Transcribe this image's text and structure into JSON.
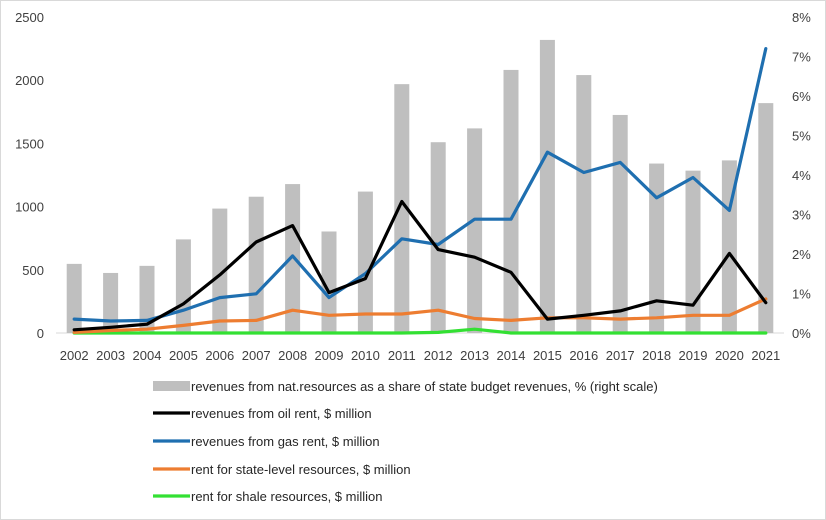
{
  "chart_data": {
    "type": "bar+line",
    "title": "",
    "categories": [
      "2002",
      "2003",
      "2004",
      "2005",
      "2006",
      "2007",
      "2008",
      "2009",
      "2010",
      "2011",
      "2012",
      "2013",
      "2014",
      "2015",
      "2016",
      "2017",
      "2018",
      "2019",
      "2020",
      "2021"
    ],
    "left_axis": {
      "ylim": [
        0,
        2500
      ],
      "ticks": [
        "0",
        "500",
        "1000",
        "1500",
        "2000",
        "2500"
      ]
    },
    "right_axis": {
      "ylim": [
        0,
        8
      ],
      "ticks": [
        "0%",
        "1%",
        "2%",
        "3%",
        "4%",
        "5%",
        "6%",
        "7%",
        "8%"
      ]
    },
    "bar_series": {
      "name": "revenues from nat.resources as a share of state budget revenues, % (right scale)",
      "axis": "right",
      "color": "#bfbfbf",
      "values": [
        1.75,
        1.52,
        1.7,
        2.37,
        3.15,
        3.45,
        3.77,
        2.57,
        3.58,
        6.3,
        4.83,
        5.18,
        6.66,
        7.42,
        6.53,
        5.52,
        4.29,
        4.11,
        4.37,
        5.82
      ]
    },
    "line_series": [
      {
        "name": "revenues from oil rent, $ million",
        "axis": "left",
        "color": "#000000",
        "values": [
          25,
          45,
          70,
          230,
          460,
          720,
          850,
          320,
          430,
          1040,
          660,
          600,
          480,
          110,
          140,
          175,
          255,
          220,
          630,
          240
        ]
      },
      {
        "name": "revenues from gas rent, $ million",
        "axis": "left",
        "color": "#1f6fb0",
        "values": [
          110,
          95,
          100,
          180,
          280,
          310,
          610,
          280,
          470,
          745,
          700,
          900,
          900,
          1430,
          1270,
          1350,
          1070,
          1230,
          970,
          2250
        ]
      },
      {
        "name": "rent for state-level resources, $ million",
        "axis": "left",
        "color": "#ed7d31",
        "values": [
          5,
          20,
          30,
          60,
          95,
          100,
          180,
          140,
          150,
          150,
          180,
          115,
          100,
          120,
          120,
          110,
          120,
          140,
          140,
          270
        ]
      },
      {
        "name": "rent for shale resources, $ million",
        "axis": "left",
        "color": "#33e033",
        "values": [
          0,
          0,
          0,
          0,
          0,
          0,
          0,
          0,
          0,
          0,
          5,
          30,
          0,
          0,
          0,
          0,
          0,
          0,
          0,
          0
        ]
      }
    ],
    "grid": false,
    "legend_position": "bottom"
  }
}
